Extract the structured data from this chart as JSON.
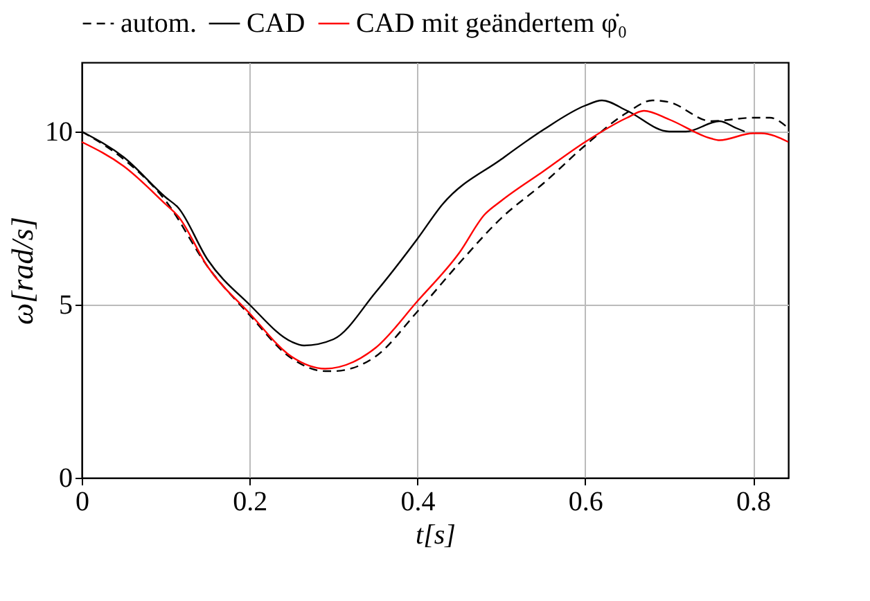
{
  "chart_data": {
    "type": "line",
    "xlabel": "t[s]",
    "ylabel": "ω[rad/s]",
    "xlim": [
      0,
      0.842
    ],
    "ylim": [
      0,
      12
    ],
    "xticks": [
      0,
      0.2,
      0.4,
      0.6,
      0.8
    ],
    "yticks": [
      0,
      5,
      10
    ],
    "grid": true,
    "legend": "top",
    "marker": "none",
    "series": [
      {
        "name": "autom.",
        "color": "#000000",
        "line_style": "dashed",
        "x": [
          0,
          0.05,
          0.1,
          0.15,
          0.2,
          0.25,
          0.29,
          0.3,
          0.35,
          0.4,
          0.45,
          0.5,
          0.55,
          0.6,
          0.65,
          0.68,
          0.7,
          0.75,
          0.8,
          0.82,
          0.842
        ],
        "values": [
          10.0,
          9.2,
          8.0,
          6.1,
          4.7,
          3.45,
          3.08,
          3.08,
          3.5,
          4.8,
          6.2,
          7.5,
          8.5,
          9.6,
          10.55,
          10.9,
          10.85,
          10.3,
          10.4,
          10.4,
          10.1
        ]
      },
      {
        "name": "CAD",
        "color": "#000000",
        "line_style": "solid",
        "x": [
          0,
          0.05,
          0.1,
          0.115,
          0.15,
          0.2,
          0.25,
          0.265,
          0.3,
          0.35,
          0.4,
          0.43,
          0.5,
          0.55,
          0.6,
          0.62,
          0.65,
          0.7,
          0.72,
          0.76,
          0.78,
          0.79
        ],
        "values": [
          10.0,
          9.26,
          8.1,
          7.8,
          6.3,
          5.0,
          3.93,
          3.82,
          4.0,
          5.35,
          6.9,
          7.9,
          9.2,
          10.05,
          10.75,
          10.9,
          10.6,
          10.0,
          10.0,
          10.3,
          10.1,
          10.0
        ]
      },
      {
        "name": "CAD mit geändertem φ̇₀",
        "color": "#ff0000",
        "line_style": "solid",
        "x": [
          0,
          0.05,
          0.1,
          0.115,
          0.15,
          0.2,
          0.25,
          0.29,
          0.35,
          0.4,
          0.45,
          0.48,
          0.5,
          0.55,
          0.6,
          0.65,
          0.67,
          0.7,
          0.75,
          0.76,
          0.8,
          0.81,
          0.842
        ],
        "values": [
          9.7,
          9.0,
          7.9,
          7.55,
          6.1,
          4.75,
          3.5,
          3.15,
          3.75,
          5.1,
          6.5,
          7.6,
          8.0,
          8.85,
          9.7,
          10.4,
          10.6,
          10.35,
          9.8,
          9.75,
          9.95,
          9.95,
          9.7
        ]
      }
    ]
  }
}
